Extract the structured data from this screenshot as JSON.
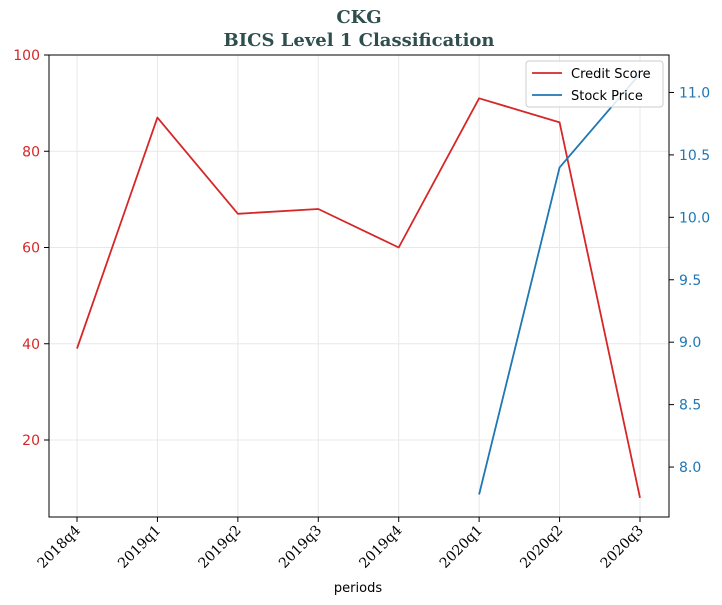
{
  "chart_data": {
    "type": "line",
    "title": "CKG",
    "subtitle": "BICS Level 1 Classification",
    "xlabel": "periods",
    "categories": [
      "2018q4",
      "2019q1",
      "2019q2",
      "2019q3",
      "2019q4",
      "2020q1",
      "2020q2",
      "2020q3"
    ],
    "left_axis": {
      "ylim": [
        4,
        100
      ],
      "ticks": [
        20,
        40,
        60,
        80,
        100
      ],
      "color": "#d62728"
    },
    "right_axis": {
      "ylim": [
        7.6,
        11.3
      ],
      "ticks": [
        8.0,
        8.5,
        9.0,
        9.5,
        10.0,
        10.5,
        11.0
      ],
      "tick_labels": [
        "8.0",
        "8.5",
        "9.0",
        "9.5",
        "10.0",
        "10.5",
        "11.0"
      ],
      "color": "#1f77b4"
    },
    "grid": true,
    "legend_position": "top-right",
    "series": [
      {
        "name": "Credit Score",
        "axis": "left",
        "color": "#d62728",
        "values": [
          39,
          87,
          67,
          68,
          60,
          91,
          86,
          8
        ]
      },
      {
        "name": "Stock Price",
        "axis": "right",
        "color": "#1f77b4",
        "values": [
          null,
          null,
          null,
          null,
          null,
          7.78,
          10.4,
          11.15
        ]
      }
    ]
  }
}
